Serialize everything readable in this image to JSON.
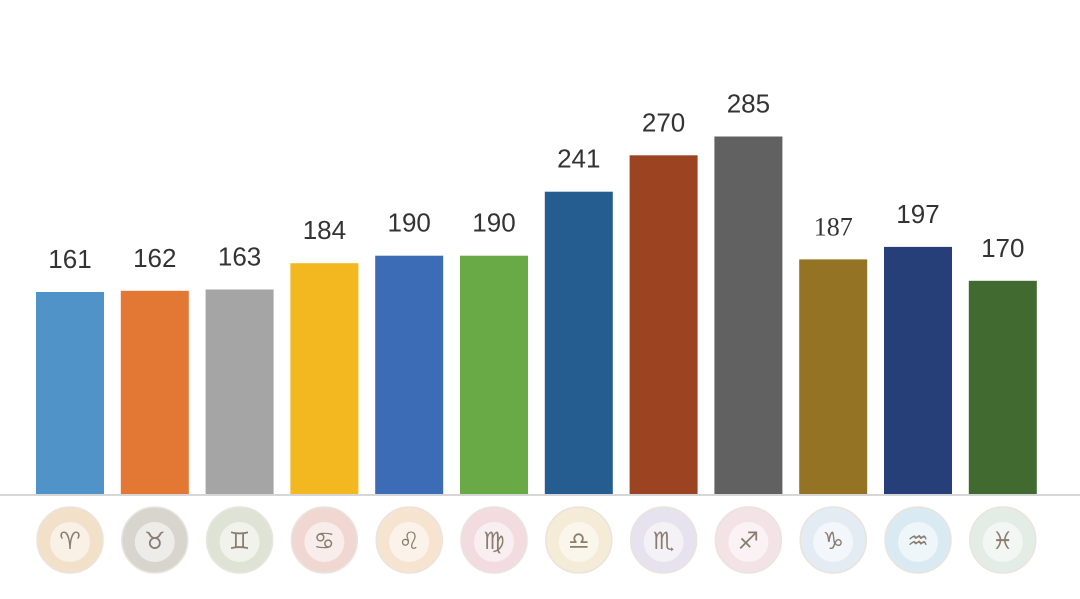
{
  "chart_data": {
    "type": "bar",
    "categories": [
      "aries-icon",
      "taurus-icon",
      "gemini-icon",
      "cancer-icon",
      "leo-icon",
      "virgo-icon",
      "libra-icon",
      "scorpio-icon",
      "sagittarius-icon",
      "capricorn-icon",
      "aquarius-icon",
      "pisces-icon"
    ],
    "values": [
      161,
      162,
      163,
      184,
      190,
      190,
      241,
      270,
      285,
      187,
      197,
      170
    ],
    "value_labels": [
      "161",
      "162",
      "163",
      "184",
      "190",
      "190",
      "241",
      "270",
      "285",
      "187",
      "197",
      "170"
    ],
    "colors": [
      "#4f93c9",
      "#e27833",
      "#a5a5a5",
      "#f3b71f",
      "#3d6cb6",
      "#6aaa46",
      "#255d91",
      "#9c4422",
      "#616161",
      "#947325",
      "#263f78",
      "#406a30"
    ],
    "icon_colors": [
      "#f2e1c8",
      "#d8d4ce",
      "#dfe3d6",
      "#f1d7d2",
      "#f7e4d0",
      "#f2dce0",
      "#f4ecd6",
      "#e6e2ee",
      "#f3e3e6",
      "#e4ecf3",
      "#d9eaf2",
      "#e3ede6"
    ],
    "title": "",
    "xlabel": "",
    "ylabel": "",
    "ylim": [
      0,
      310
    ],
    "grid": false,
    "legend": "none"
  }
}
